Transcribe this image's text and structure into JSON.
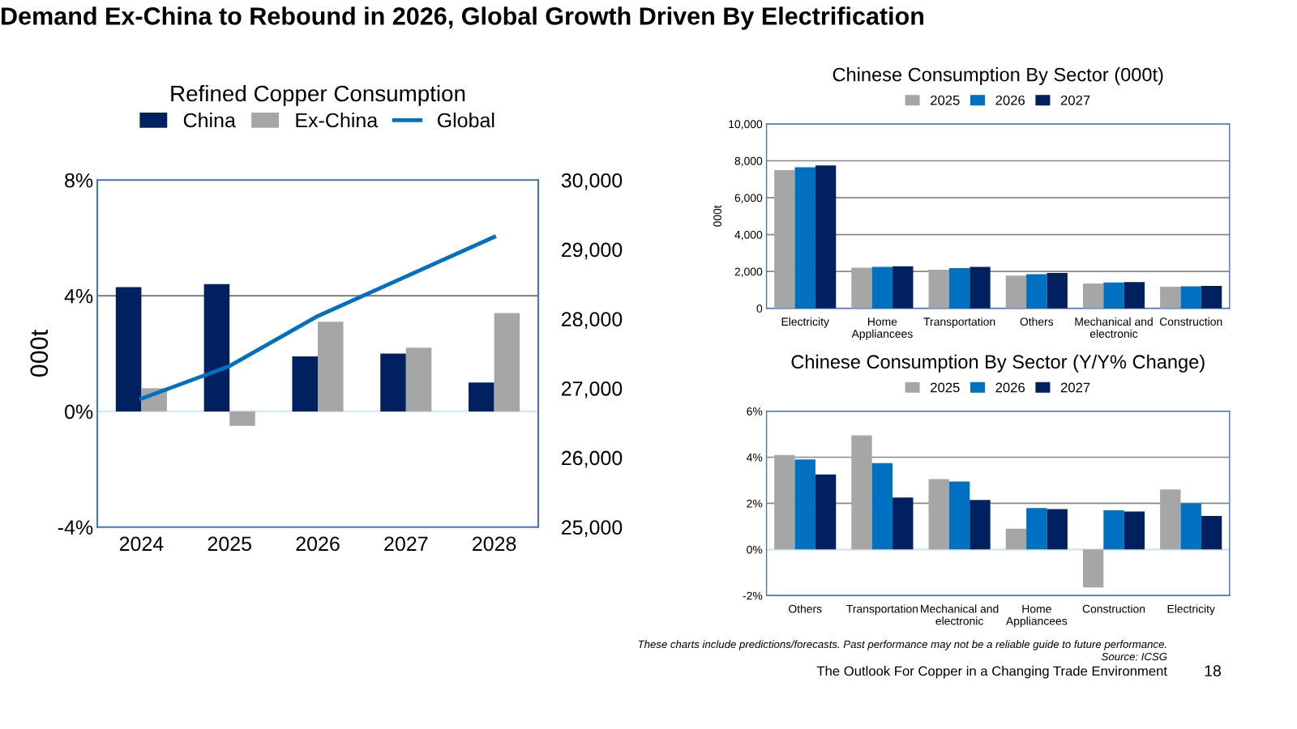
{
  "chart_data": [
    {
      "type": "bar",
      "title": "Refined Copper Consumption",
      "ylabel": "000t",
      "categories": [
        "2024",
        "2025",
        "2026",
        "2027",
        "2028"
      ],
      "series": [
        {
          "name": "China",
          "color": "#002060",
          "values": [
            4.3,
            4.4,
            1.9,
            2.0,
            1.0
          ]
        },
        {
          "name": "Ex-China",
          "color": "#a6a6a6",
          "values": [
            0.8,
            -0.5,
            3.1,
            2.2,
            3.4
          ]
        },
        {
          "name": "Global",
          "type": "line",
          "axis": "y2",
          "color": "#0070c0",
          "values": [
            26850,
            27320,
            28040,
            28610,
            29180
          ]
        }
      ],
      "ylim": [
        -4,
        8
      ],
      "yticks": [
        {
          "value": -4,
          "label": "-4%"
        },
        {
          "value": 0,
          "label": "0%"
        },
        {
          "value": 4,
          "label": "4%"
        },
        {
          "value": 8,
          "label": "8%"
        }
      ],
      "y2lim": [
        25000,
        30000
      ],
      "y2ticks": [
        {
          "value": 25000,
          "label": "25,000"
        },
        {
          "value": 26000,
          "label": "26,000"
        },
        {
          "value": 27000,
          "label": "27,000"
        },
        {
          "value": 28000,
          "label": "28,000"
        },
        {
          "value": 29000,
          "label": "29,000"
        },
        {
          "value": 30000,
          "label": "30,000"
        }
      ],
      "ref_lines": [
        {
          "axis": "y",
          "value": 4,
          "color": "#888888"
        }
      ],
      "legend": "top",
      "annotations": [
        "Demand Ex-China to Rebound in 2026, Global Growth Driven By Electrification"
      ]
    },
    {
      "type": "bar",
      "title": "Chinese Consumption By Sector (000t)",
      "ylabel": "000t",
      "categories": [
        "Electricity",
        "Home\nAppliancees",
        "Transportation",
        "Others",
        "Mechanical and\nelectronic",
        "Construction"
      ],
      "series": [
        {
          "name": "2025",
          "color": "#a6a6a6",
          "values": [
            7500,
            2200,
            2100,
            1780,
            1350,
            1170
          ]
        },
        {
          "name": "2026",
          "color": "#0070c0",
          "values": [
            7650,
            2250,
            2180,
            1850,
            1400,
            1190
          ]
        },
        {
          "name": "2027",
          "color": "#002060",
          "values": [
            7750,
            2280,
            2250,
            1920,
            1420,
            1220
          ]
        }
      ],
      "ylim": [
        0,
        10000
      ],
      "yticks": [
        0,
        {
          "value": 2000,
          "label": "2,000"
        },
        {
          "value": 4000,
          "label": "4,000"
        },
        {
          "value": 6000,
          "label": "6,000"
        },
        {
          "value": 8000,
          "label": "8,000"
        },
        {
          "value": 10000,
          "label": "10,000"
        }
      ],
      "grid": "y",
      "legend": "top"
    },
    {
      "type": "bar",
      "title": "Chinese Consumption By Sector (Y/Y% Change)",
      "categories": [
        "Others",
        "Transportation",
        "Mechanical and\nelectronic",
        "Home\nAppliancees",
        "Construction",
        "Electricity"
      ],
      "series": [
        {
          "name": "2025",
          "color": "#a6a6a6",
          "values": [
            4.1,
            4.95,
            3.05,
            0.9,
            -1.65,
            2.6
          ]
        },
        {
          "name": "2026",
          "color": "#0070c0",
          "values": [
            3.9,
            3.75,
            2.95,
            1.8,
            1.7,
            2.0
          ]
        },
        {
          "name": "2027",
          "color": "#002060",
          "values": [
            3.25,
            2.25,
            2.15,
            1.75,
            1.65,
            1.45
          ]
        }
      ],
      "ylim": [
        -2,
        6
      ],
      "yticks": [
        {
          "value": -2,
          "label": "-2%"
        },
        {
          "value": 0,
          "label": "0%"
        },
        {
          "value": 2,
          "label": "2%"
        },
        {
          "value": 4,
          "label": "4%"
        },
        {
          "value": 6,
          "label": "6%"
        }
      ],
      "grid": "y",
      "legend": "top",
      "annotations": [
        "These charts include predictions/forecasts. Past performance may not be a reliable guide to future performance.",
        "Source: ICSG",
        "The Outlook For Copper in a Changing Trade Environment",
        "18"
      ]
    }
  ]
}
